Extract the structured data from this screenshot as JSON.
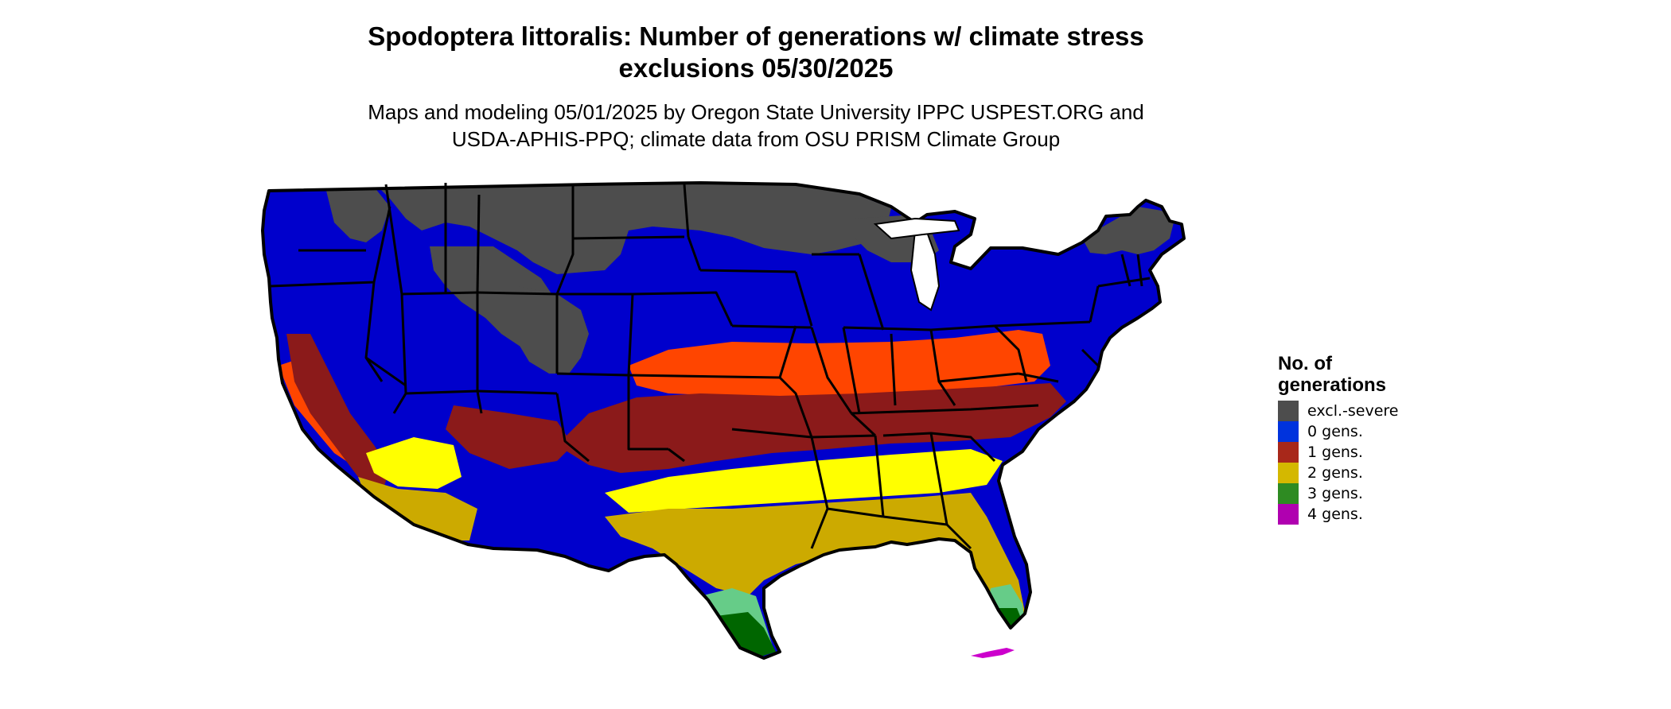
{
  "title": {
    "line1": "Spodoptera littoralis: Number of generations w/ climate stress",
    "line2": "exclusions 05/30/2025"
  },
  "subtitle": {
    "line1": "Maps and modeling 05/01/2025 by Oregon State University IPPC USPEST.ORG and",
    "line2": "USDA-APHIS-PPQ; climate data from OSU PRISM Climate Group"
  },
  "legend": {
    "title_line1": "No. of",
    "title_line2": "generations",
    "items": [
      {
        "label": "excl.-severe",
        "color": "#4d4d4d"
      },
      {
        "label": "0 gens.",
        "color": "#0033dd"
      },
      {
        "label": "1 gens.",
        "color": "#a8281a"
      },
      {
        "label": "2 gens.",
        "color": "#d4b800"
      },
      {
        "label": "3 gens.",
        "color": "#2e8b22"
      },
      {
        "label": "4 gens.",
        "color": "#b000b0"
      }
    ]
  },
  "map_colors": {
    "excluded": "#4d4d4d",
    "zero_gens": "#0000cc",
    "one_gen_light": "#ff4500",
    "one_gen": "#8b1a1a",
    "two_gens_light": "#ffff00",
    "two_gens": "#ccaa00",
    "three_gens_light": "#66cc88",
    "three_gens": "#006600",
    "four_gens": "#cc00cc",
    "border": "#000000"
  }
}
